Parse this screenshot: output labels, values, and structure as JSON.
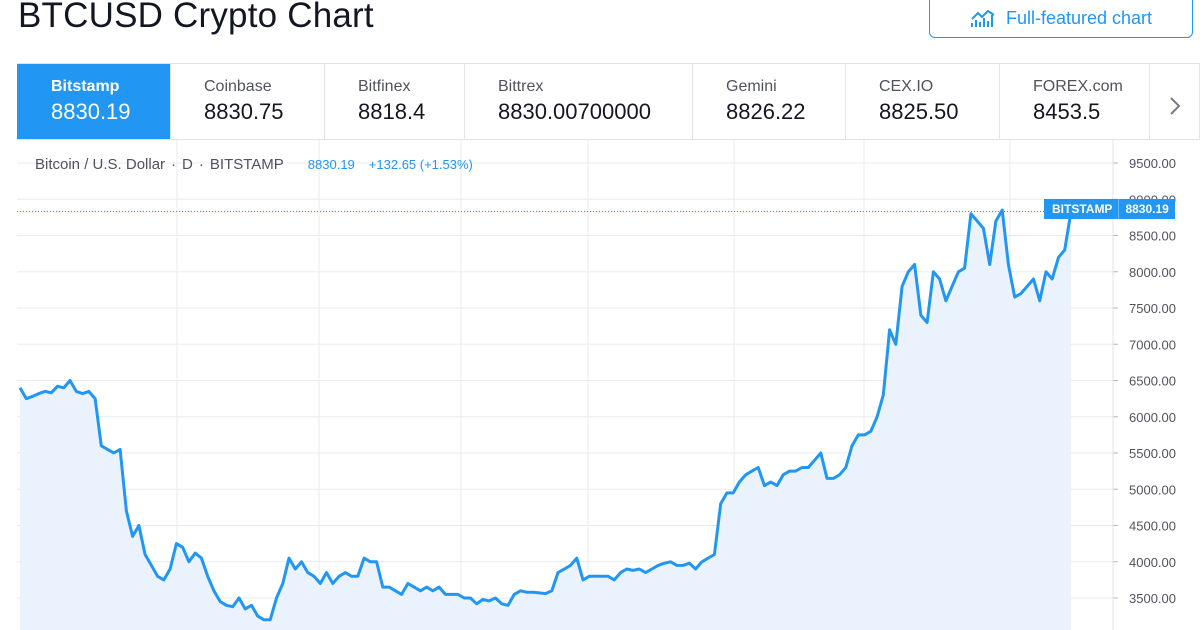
{
  "page": {
    "title": "BTCUSD Crypto Chart"
  },
  "header": {
    "full_chart_label": "Full-featured chart",
    "full_chart_icon": "chart-line-icon"
  },
  "tabs": [
    {
      "exchange": "Bitstamp",
      "price": "8830.19",
      "active": true
    },
    {
      "exchange": "Coinbase",
      "price": "8830.75"
    },
    {
      "exchange": "Bitfinex",
      "price": "8818.4"
    },
    {
      "exchange": "Bittrex",
      "price": "8830.00700000"
    },
    {
      "exchange": "Gemini",
      "price": "8826.22"
    },
    {
      "exchange": "CEX.IO",
      "price": "8825.50"
    },
    {
      "exchange": "FOREX.com",
      "price": "8453.5"
    }
  ],
  "tabs_next_icon": "chevron-right-icon",
  "legend": {
    "symbol": "Bitcoin / U.S. Dollar",
    "sep": "·",
    "interval": "D",
    "exchange": "BITSTAMP",
    "last": "8830.19",
    "change": "+132.65 (+1.53%)"
  },
  "price_badge": {
    "label": "BITSTAMP",
    "value": "8830.19"
  },
  "colors": {
    "accent": "#2196f3",
    "area_fill": "#eaf3fd",
    "grid": "#e8ebf0"
  },
  "chart_data": {
    "type": "area",
    "series": [
      {
        "values": [
          6400,
          6250,
          6280,
          6320,
          6350,
          6330,
          6420,
          6400,
          6500,
          6350,
          6320,
          6350,
          6250,
          5600,
          5550,
          5500,
          5550,
          4700,
          4350,
          4500,
          4100,
          3950,
          3800,
          3750,
          3900,
          4250,
          4200,
          4000,
          4120,
          4050,
          3800,
          3600,
          3450,
          3400,
          3380,
          3500,
          3350,
          3400,
          3250,
          3200,
          3200,
          3500,
          3700,
          4050,
          3900,
          4000,
          3850,
          3800,
          3700,
          3850,
          3700,
          3800,
          3850,
          3800,
          3800,
          4050,
          4000,
          4000,
          3650,
          3650,
          3600,
          3550,
          3700,
          3650,
          3600,
          3650,
          3600,
          3650,
          3550,
          3550,
          3550,
          3500,
          3500,
          3420,
          3480,
          3460,
          3500,
          3420,
          3400,
          3550,
          3600,
          3580,
          3580,
          3570,
          3560,
          3600,
          3850,
          3900,
          3950,
          4050,
          3750,
          3800,
          3800,
          3800,
          3800,
          3750,
          3850,
          3900,
          3880,
          3900,
          3850,
          3900,
          3950,
          3980,
          4000,
          3950,
          3950,
          3980,
          3900,
          4000,
          4050,
          4100,
          4800,
          4950,
          4950,
          5100,
          5200,
          5250,
          5300,
          5050,
          5100,
          5050,
          5200,
          5250,
          5250,
          5300,
          5300,
          5400,
          5500,
          5150,
          5150,
          5200,
          5300,
          5600,
          5750,
          5750,
          5800,
          6000,
          6300,
          7200,
          7000,
          7800,
          8000,
          8100,
          7400,
          7300,
          8000,
          7900,
          7600,
          7800,
          8000,
          8050,
          8800,
          8700,
          8600,
          8100,
          8700,
          8850,
          8100,
          7650,
          7700,
          7800,
          7900,
          7600,
          8000,
          7900,
          8200,
          8300,
          8830
        ]
      }
    ],
    "ylim": [
      3200,
      9750
    ],
    "y_ticks": [
      "9500.00",
      "9000.00",
      "8500.00",
      "8000.00",
      "7500.00",
      "7000.00",
      "6500.00",
      "6000.00",
      "5500.00",
      "5000.00",
      "4500.00",
      "4000.00",
      "3500.00"
    ],
    "y_tick_values": [
      9500,
      9000,
      8500,
      8000,
      7500,
      7000,
      6500,
      6000,
      5500,
      5000,
      4500,
      4000,
      3500
    ],
    "last_value": 8830.19,
    "grid": true
  }
}
